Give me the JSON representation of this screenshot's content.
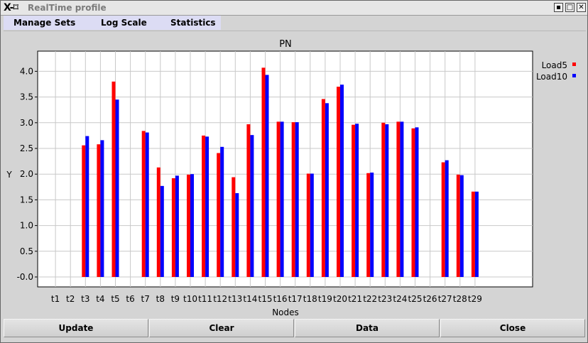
{
  "window": {
    "title": "RealTime profile",
    "controls": [
      "▪",
      "□",
      "✕"
    ]
  },
  "menu": [
    "Manage  Sets",
    "Log  Scale",
    "Statistics"
  ],
  "buttons": [
    "Update",
    "Clear",
    "Data",
    "Close"
  ],
  "chart_data": {
    "type": "bar",
    "title": "PN",
    "xlabel": "Nodes",
    "ylabel": "Y",
    "ylim": [
      -0.1,
      4.2
    ],
    "yticks": [
      "-0.0",
      "0.5",
      "1.0",
      "1.5",
      "2.0",
      "2.5",
      "3.0",
      "3.5",
      "4.0"
    ],
    "grid": true,
    "legend_position": "right",
    "categories": [
      "t1",
      "t2",
      "t3",
      "t4",
      "t5",
      "t6",
      "t7",
      "t8",
      "t9",
      "t10",
      "t11",
      "t12",
      "t13",
      "t14",
      "t15",
      "t16",
      "t17",
      "t18",
      "t19",
      "t20",
      "t21",
      "t22",
      "t23",
      "t24",
      "t25",
      "t26",
      "t27",
      "t28",
      "t29"
    ],
    "series": [
      {
        "name": "Load5",
        "color": "#ff0000",
        "values": [
          null,
          null,
          2.56,
          2.58,
          3.8,
          null,
          2.84,
          2.13,
          1.92,
          1.99,
          2.75,
          2.41,
          1.94,
          2.97,
          4.07,
          3.02,
          3.01,
          2.01,
          3.46,
          3.7,
          2.96,
          2.02,
          3.0,
          3.02,
          2.89,
          null,
          2.23,
          1.99,
          1.66
        ]
      },
      {
        "name": "Load10",
        "color": "#0000ff",
        "values": [
          null,
          null,
          2.74,
          2.66,
          3.45,
          null,
          2.81,
          1.77,
          1.97,
          2.0,
          2.73,
          2.53,
          1.63,
          2.76,
          3.93,
          3.02,
          3.01,
          2.01,
          3.38,
          3.74,
          2.98,
          2.03,
          2.97,
          3.02,
          2.91,
          null,
          2.27,
          1.98,
          1.66
        ]
      }
    ]
  }
}
